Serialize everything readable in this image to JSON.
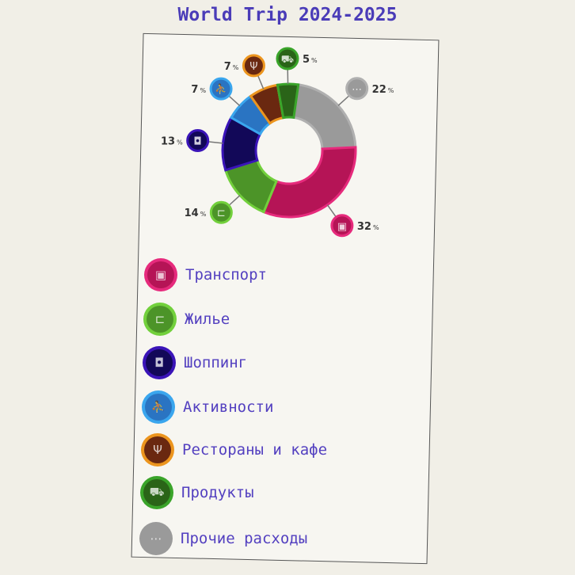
{
  "chart_data": {
    "type": "pie",
    "variant": "donut",
    "title": "World Trip 2024-2025",
    "unit": "%",
    "legend_position": "bottom",
    "slices": [
      {
        "label": "Прочие расходы",
        "value": 22,
        "color": "#9a9a9a",
        "edge": "#b0b0b0",
        "icon": "more-icon"
      },
      {
        "label": "Транспорт",
        "value": 32,
        "color": "#b51456",
        "edge": "#e62a7c",
        "icon": "bus-icon"
      },
      {
        "label": "Жилье",
        "value": 14,
        "color": "#4c9428",
        "edge": "#72d03c",
        "icon": "bed-icon"
      },
      {
        "label": "Шоппинг",
        "value": 13,
        "color": "#120858",
        "edge": "#3a14b8",
        "icon": "shopping-bag-icon"
      },
      {
        "label": "Активности",
        "value": 7,
        "color": "#2a74c2",
        "edge": "#3aa6ee",
        "icon": "running-icon"
      },
      {
        "label": "Рестораны и кафе",
        "value": 7,
        "color": "#6a2810",
        "edge": "#ec951e",
        "icon": "fork-knife-icon"
      },
      {
        "label": "Продукты",
        "value": 5,
        "color": "#2a6418",
        "edge": "#3aa42a",
        "icon": "cart-icon"
      }
    ]
  },
  "legend": [
    {
      "label": "Транспорт",
      "color": "#b51456",
      "edge": "#e62a7c",
      "glyph": "▣",
      "icon": "bus-icon"
    },
    {
      "label": "Жилье",
      "color": "#4c9428",
      "edge": "#72d03c",
      "glyph": "⊏",
      "icon": "bed-icon"
    },
    {
      "label": "Шоппинг",
      "color": "#120858",
      "edge": "#3a14b8",
      "glyph": "◘",
      "icon": "shopping-bag-icon"
    },
    {
      "label": "Активности",
      "color": "#2a74c2",
      "edge": "#3aa6ee",
      "glyph": "⛹",
      "icon": "running-icon"
    },
    {
      "label": "Рестораны и кафе",
      "color": "#6a2810",
      "edge": "#ec951e",
      "glyph": "Ψ",
      "icon": "fork-knife-icon"
    },
    {
      "label": "Продукты",
      "color": "#2a6418",
      "edge": "#3aa42a",
      "glyph": "⛟",
      "icon": "cart-icon"
    },
    {
      "label": "Прочие расходы",
      "color": "#9a9a9a",
      "edge": "#9a9a9a",
      "glyph": "⋯",
      "icon": "more-icon"
    }
  ]
}
